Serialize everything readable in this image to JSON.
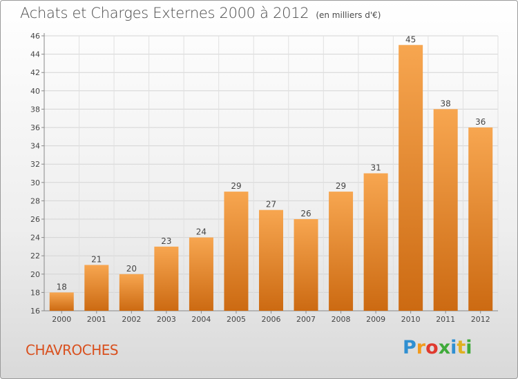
{
  "title": "Achats et Charges Externes 2000 à 2012",
  "unit": "(en milliers d'€)",
  "commune": "CHAVROCHES",
  "logo_text": "Proxiti",
  "colors": {
    "bar_light": "#f7a650",
    "bar_dark": "#cc6a12",
    "commune": "#d9501e"
  },
  "chart_data": {
    "type": "bar",
    "title": "Achats et Charges Externes 2000 à 2012",
    "subtitle": "(en milliers d'€)",
    "xlabel": "",
    "ylabel": "",
    "categories": [
      "2000",
      "2001",
      "2002",
      "2003",
      "2004",
      "2005",
      "2006",
      "2007",
      "2008",
      "2009",
      "2010",
      "2011",
      "2012"
    ],
    "values": [
      18,
      21,
      20,
      23,
      24,
      29,
      27,
      26,
      29,
      31,
      45,
      38,
      36
    ],
    "ylim": [
      16,
      46
    ],
    "yticks": [
      16,
      18,
      20,
      22,
      24,
      26,
      28,
      30,
      32,
      34,
      36,
      38,
      40,
      42,
      44,
      46
    ],
    "grid": true,
    "legend": "none"
  }
}
